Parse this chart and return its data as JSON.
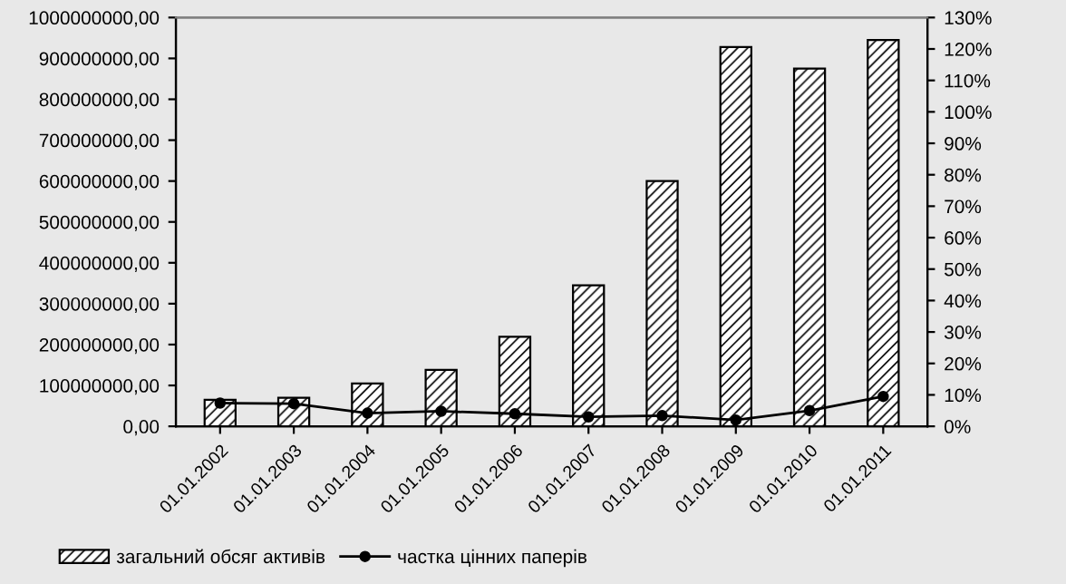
{
  "chart_data": {
    "type": "bar",
    "categories": [
      "01.01.2002",
      "01.01.2003",
      "01.01.2004",
      "01.01.2005",
      "01.01.2006",
      "01.01.2007",
      "01.01.2008",
      "01.01.2009",
      "01.01.2010",
      "01.01.2011"
    ],
    "series": [
      {
        "name": "загальний обсяг активів",
        "color": "#000000",
        "values": [
          65000000,
          70000000,
          105000000,
          138000000,
          219000000,
          345000000,
          600000000,
          928000000,
          875000000,
          945000000
        ]
      },
      {
        "name": "частка цінних паперів",
        "color": "#000000",
        "type": "line",
        "axis": "y2",
        "marker": "circle",
        "values": [
          7.4,
          7.2,
          4.2,
          4.8,
          4.0,
          3.0,
          3.4,
          2.0,
          5.0,
          9.5
        ]
      }
    ],
    "ylim": [
      0,
      1000000000
    ],
    "yticks": [
      {
        "value": 0,
        "label": "0,00"
      },
      {
        "value": 100000000,
        "label": "100000000,00"
      },
      {
        "value": 200000000,
        "label": "200000000,00"
      },
      {
        "value": 300000000,
        "label": "300000000,00"
      },
      {
        "value": 400000000,
        "label": "400000000,00"
      },
      {
        "value": 500000000,
        "label": "500000000,00"
      },
      {
        "value": 600000000,
        "label": "600000000,00"
      },
      {
        "value": 700000000,
        "label": "700000000,00"
      },
      {
        "value": 800000000,
        "label": "800000000,00"
      },
      {
        "value": 900000000,
        "label": "900000000,00"
      },
      {
        "value": 1000000000,
        "label": "1000000000,00"
      }
    ],
    "y2lim": [
      0,
      130
    ],
    "y2ticks": [
      {
        "value": 0,
        "label": "0%"
      },
      {
        "value": 10,
        "label": "10%"
      },
      {
        "value": 20,
        "label": "20%"
      },
      {
        "value": 30,
        "label": "30%"
      },
      {
        "value": 40,
        "label": "40%"
      },
      {
        "value": 50,
        "label": "50%"
      },
      {
        "value": 60,
        "label": "60%"
      },
      {
        "value": 70,
        "label": "70%"
      },
      {
        "value": 80,
        "label": "80%"
      },
      {
        "value": 90,
        "label": "90%"
      },
      {
        "value": 100,
        "label": "100%"
      },
      {
        "value": 110,
        "label": "110%"
      },
      {
        "value": 120,
        "label": "120%"
      },
      {
        "value": 130,
        "label": "130%"
      }
    ],
    "grid": false,
    "legend": "bottom"
  }
}
